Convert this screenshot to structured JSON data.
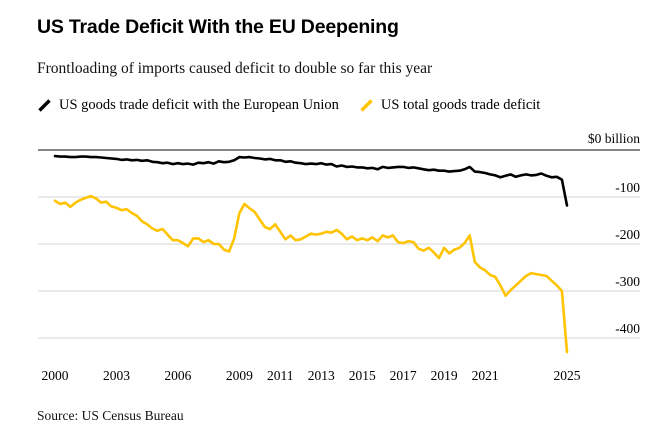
{
  "header": {
    "title": "US Trade Deficit With the EU Deepening",
    "subtitle": "Frontloading of imports caused deficit to double so far this year"
  },
  "legend": [
    {
      "label": "US goods trade deficit with the European Union",
      "color": "#000000"
    },
    {
      "label": "US total goods trade deficit",
      "color": "#ffc300"
    }
  ],
  "source": {
    "text": "Source: US Census Bureau"
  },
  "chart_data": {
    "type": "line",
    "title": "US Trade Deficit With the EU Deepening",
    "unit_label": "$0 billion",
    "ylabel": "$ billion",
    "xlabel": "",
    "grid": true,
    "legend_position": "top",
    "xlim": [
      2000,
      2025
    ],
    "ylim": [
      -450,
      0
    ],
    "x_ticks": [
      2000,
      2003,
      2006,
      2009,
      2011,
      2013,
      2015,
      2017,
      2019,
      2021,
      2025
    ],
    "y_ticks": [
      -100,
      -200,
      -300,
      -400
    ],
    "x": [
      2000,
      2000.25,
      2000.5,
      2000.75,
      2001,
      2001.25,
      2001.5,
      2001.75,
      2002,
      2002.25,
      2002.5,
      2002.75,
      2003,
      2003.25,
      2003.5,
      2003.75,
      2004,
      2004.25,
      2004.5,
      2004.75,
      2005,
      2005.25,
      2005.5,
      2005.75,
      2006,
      2006.25,
      2006.5,
      2006.75,
      2007,
      2007.25,
      2007.5,
      2007.75,
      2008,
      2008.25,
      2008.5,
      2008.75,
      2009,
      2009.25,
      2009.5,
      2009.75,
      2010,
      2010.25,
      2010.5,
      2010.75,
      2011,
      2011.25,
      2011.5,
      2011.75,
      2012,
      2012.25,
      2012.5,
      2012.75,
      2013,
      2013.25,
      2013.5,
      2013.75,
      2014,
      2014.25,
      2014.5,
      2014.75,
      2015,
      2015.25,
      2015.5,
      2015.75,
      2016,
      2016.25,
      2016.5,
      2016.75,
      2017,
      2017.25,
      2017.5,
      2017.75,
      2018,
      2018.25,
      2018.5,
      2018.75,
      2019,
      2019.25,
      2019.5,
      2019.75,
      2020,
      2020.25,
      2020.5,
      2020.75,
      2021,
      2021.25,
      2021.5,
      2021.75,
      2022,
      2022.25,
      2022.5,
      2022.75,
      2023,
      2023.25,
      2023.5,
      2023.75,
      2024,
      2024.25,
      2024.5,
      2024.75,
      2025
    ],
    "series": [
      {
        "id": "eu",
        "name": "US goods trade deficit with the European Union",
        "color": "#000000",
        "values": [
          -13,
          -14,
          -14,
          -15,
          -15,
          -14,
          -14,
          -15,
          -15,
          -16,
          -17,
          -18,
          -19,
          -21,
          -20,
          -22,
          -21,
          -23,
          -22,
          -25,
          -26,
          -28,
          -27,
          -30,
          -28,
          -30,
          -29,
          -31,
          -27,
          -28,
          -26,
          -29,
          -24,
          -26,
          -25,
          -22,
          -15,
          -16,
          -15,
          -17,
          -18,
          -20,
          -19,
          -22,
          -22,
          -25,
          -24,
          -27,
          -28,
          -30,
          -29,
          -30,
          -28,
          -31,
          -30,
          -35,
          -33,
          -36,
          -35,
          -37,
          -37,
          -39,
          -38,
          -41,
          -36,
          -38,
          -37,
          -36,
          -36,
          -38,
          -37,
          -39,
          -41,
          -43,
          -42,
          -44,
          -44,
          -46,
          -45,
          -44,
          -41,
          -36,
          -46,
          -47,
          -49,
          -52,
          -54,
          -58,
          -55,
          -52,
          -57,
          -54,
          -52,
          -54,
          -53,
          -50,
          -55,
          -58,
          -57,
          -63,
          -118
        ]
      },
      {
        "id": "total",
        "name": "US total goods trade deficit",
        "color": "#ffc300",
        "values": [
          -108,
          -115,
          -112,
          -121,
          -112,
          -106,
          -102,
          -98,
          -103,
          -112,
          -110,
          -120,
          -123,
          -128,
          -126,
          -134,
          -140,
          -152,
          -158,
          -167,
          -172,
          -168,
          -180,
          -192,
          -192,
          -198,
          -205,
          -188,
          -188,
          -196,
          -192,
          -200,
          -200,
          -212,
          -216,
          -188,
          -135,
          -115,
          -124,
          -132,
          -148,
          -164,
          -168,
          -158,
          -174,
          -190,
          -182,
          -192,
          -190,
          -184,
          -178,
          -180,
          -178,
          -174,
          -176,
          -170,
          -178,
          -190,
          -184,
          -192,
          -188,
          -192,
          -186,
          -194,
          -182,
          -186,
          -182,
          -196,
          -198,
          -194,
          -196,
          -210,
          -214,
          -208,
          -218,
          -230,
          -208,
          -220,
          -212,
          -208,
          -198,
          -182,
          -238,
          -250,
          -256,
          -266,
          -270,
          -288,
          -310,
          -298,
          -288,
          -278,
          -268,
          -262,
          -264,
          -266,
          -268,
          -278,
          -288,
          -300,
          -430
        ]
      }
    ]
  }
}
